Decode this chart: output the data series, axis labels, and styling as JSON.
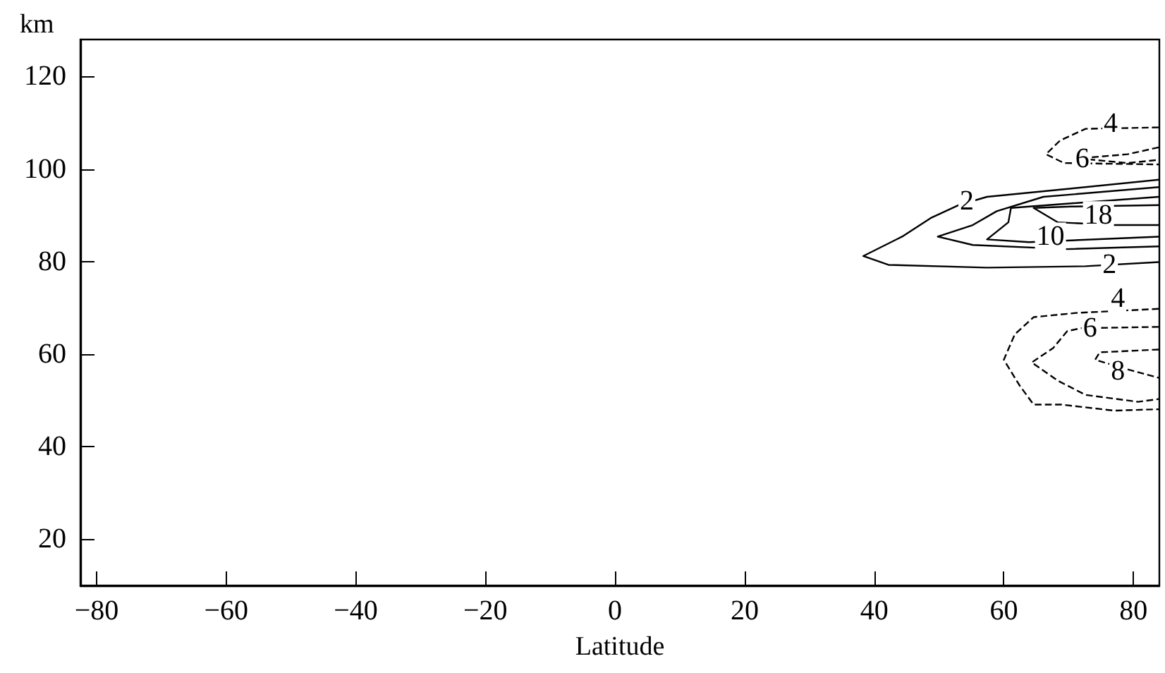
{
  "chart_data": {
    "type": "line",
    "xlabel": "Latitude",
    "ylabel": "km",
    "xlim": [
      -82.5,
      84
    ],
    "xticks": [
      -80,
      -60,
      -40,
      -20,
      0,
      20,
      40,
      60,
      80
    ],
    "ylim": [
      10,
      128
    ],
    "yticks": [
      20,
      40,
      60,
      80,
      100,
      120
    ],
    "grid": false,
    "legend": false,
    "marker": "none",
    "series": [
      {
        "color": "#000000",
        "line_style": "solid",
        "x": [
          83.9,
          70.4,
          57.4,
          53.0,
          48.7,
          44.3,
          38.3,
          42.2,
          57.4,
          72.6,
          83.9
        ],
        "values": [
          97.7,
          95.8,
          94.0,
          92.2,
          89.4,
          85.4,
          81.2,
          79.3,
          78.7,
          79.0,
          79.9
        ]
      },
      {
        "color": "#000000",
        "line_style": "solid",
        "x": [
          83.9,
          66.1,
          58.9,
          55.2,
          49.8,
          55.2,
          69.8,
          83.9
        ],
        "values": [
          96.1,
          94.0,
          90.9,
          87.9,
          85.4,
          83.6,
          82.7,
          83.3
        ]
      },
      {
        "color": "#000000",
        "line_style": "solid",
        "x": [
          83.9,
          61.1,
          60.7,
          57.4,
          63.9,
          83.9
        ],
        "values": [
          94.0,
          91.6,
          88.5,
          84.8,
          84.2,
          85.4
        ]
      },
      {
        "color": "#000000",
        "line_style": "solid",
        "x": [
          83.9,
          70.4,
          64.6,
          68.3,
          77.0,
          83.9
        ],
        "values": [
          92.2,
          91.9,
          91.6,
          88.5,
          87.9,
          87.9
        ]
      },
      {
        "color": "#000000",
        "line_style": "dashed",
        "x": [
          83.9,
          72.6,
          68.7,
          66.5,
          69.3,
          83.9
        ],
        "values": [
          109.0,
          108.7,
          106.2,
          103.2,
          101.3,
          101.0
        ]
      },
      {
        "color": "#000000",
        "line_style": "dashed",
        "x": [
          83.9,
          79.1,
          71.5,
          79.1,
          83.9
        ],
        "values": [
          104.7,
          103.2,
          102.3,
          101.3,
          102.0
        ]
      },
      {
        "color": "#000000",
        "line_style": "dashed",
        "x": [
          83.9,
          71.1,
          64.6,
          61.7,
          60.0,
          62.4,
          64.6,
          68.9,
          77.0,
          83.9
        ],
        "values": [
          69.8,
          68.9,
          68.0,
          64.3,
          58.8,
          53.3,
          49.1,
          49.1,
          47.8,
          48.1
        ]
      },
      {
        "color": "#000000",
        "line_style": "dashed",
        "x": [
          83.9,
          71.9,
          69.8,
          67.6,
          64.3,
          68.3,
          72.6,
          80.7,
          83.9
        ],
        "values": [
          65.9,
          65.6,
          65.0,
          61.3,
          58.2,
          54.3,
          51.2,
          49.7,
          50.3
        ]
      },
      {
        "color": "#000000",
        "line_style": "dashed",
        "x": [
          83.9,
          74.8,
          74.1,
          79.1,
          83.9
        ],
        "values": [
          61.0,
          60.4,
          58.8,
          56.7,
          54.9
        ]
      }
    ],
    "annotations": [
      {
        "text": "2",
        "x": 54.3,
        "y": 93.1
      },
      {
        "text": "18",
        "x": 74.6,
        "y": 90.0
      },
      {
        "text": "10",
        "x": 67.2,
        "y": 85.4
      },
      {
        "text": "2",
        "x": 76.3,
        "y": 79.3
      },
      {
        "text": "4",
        "x": 76.5,
        "y": 109.9
      },
      {
        "text": "6",
        "x": 72.1,
        "y": 102.3
      },
      {
        "text": "4",
        "x": 77.6,
        "y": 72.0
      },
      {
        "text": "6",
        "x": 73.3,
        "y": 65.6
      },
      {
        "text": "8",
        "x": 77.6,
        "y": 56.4
      }
    ]
  }
}
